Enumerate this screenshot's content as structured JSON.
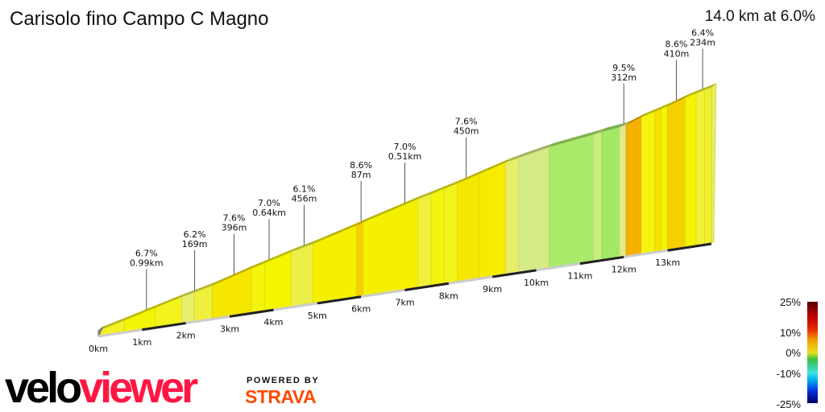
{
  "header": {
    "title": "Carisolo fino Campo C Magno",
    "summary": "14.0 km at 6.0%"
  },
  "chart_data": {
    "type": "area",
    "title": "Carisolo fino Campo C Magno",
    "xlabel": "",
    "ylabel": "",
    "xlim": [
      0,
      14
    ],
    "x_ticks": [
      "0km",
      "1km",
      "2km",
      "3km",
      "4km",
      "5km",
      "6km",
      "7km",
      "8km",
      "9km",
      "10km",
      "11km",
      "12km",
      "13km"
    ],
    "segments": [
      [
        0,
        0.6,
        6.5
      ],
      [
        0,
        0.6,
        6.5
      ],
      [
        0.6,
        1.3,
        6.9
      ],
      [
        1.3,
        1.9,
        6.6
      ],
      [
        1.9,
        2.2,
        5.8
      ],
      [
        1.9,
        2.2,
        5.8
      ],
      [
        2.2,
        2.6,
        6.2
      ],
      [
        2.6,
        3.5,
        7.6
      ],
      [
        3.5,
        3.8,
        6.8
      ],
      [
        3.8,
        4.4,
        7.0
      ],
      [
        4.4,
        4.9,
        6.1
      ],
      [
        4.9,
        5.9,
        7.2
      ],
      [
        5.9,
        6.05,
        8.6
      ],
      [
        6.05,
        7.3,
        7.2
      ],
      [
        7.3,
        7.6,
        6.2
      ],
      [
        7.6,
        7.9,
        6.8
      ],
      [
        7.9,
        8.2,
        6.6
      ],
      [
        8.2,
        8.7,
        7.6
      ],
      [
        8.7,
        9.3,
        7.4
      ],
      [
        9.3,
        9.6,
        5.8
      ],
      [
        9.6,
        10.3,
        5.2
      ],
      [
        10.3,
        11.3,
        3.5
      ],
      [
        11.3,
        11.5,
        4.8
      ],
      [
        11.5,
        11.9,
        2.8
      ],
      [
        11.9,
        12.05,
        5.5
      ],
      [
        12.05,
        12.4,
        9.5
      ],
      [
        12.4,
        12.7,
        6.8
      ],
      [
        12.7,
        12.85,
        7.8
      ],
      [
        12.85,
        13.0,
        6.9
      ],
      [
        13.0,
        13.4,
        8.6
      ],
      [
        13.4,
        13.65,
        6.9
      ],
      [
        13.65,
        13.85,
        6.3
      ],
      [
        13.85,
        14.0,
        6.4
      ]
    ],
    "annotations": [
      {
        "km": 1.1,
        "grade": "6.7%",
        "length": "0.99km"
      },
      {
        "km": 2.2,
        "grade": "6.2%",
        "length": "169m"
      },
      {
        "km": 3.1,
        "grade": "7.6%",
        "length": "396m"
      },
      {
        "km": 3.9,
        "grade": "7.0%",
        "length": "0.64km"
      },
      {
        "km": 4.7,
        "grade": "6.1%",
        "length": "456m"
      },
      {
        "km": 6.0,
        "grade": "8.6%",
        "length": "87m"
      },
      {
        "km": 7.0,
        "grade": "7.0%",
        "length": "0.51km"
      },
      {
        "km": 8.4,
        "grade": "7.6%",
        "length": "450m"
      },
      {
        "km": 12.0,
        "grade": "9.5%",
        "length": "312m"
      },
      {
        "km": 13.2,
        "grade": "8.6%",
        "length": "410m"
      },
      {
        "km": 13.8,
        "grade": "6.4%",
        "length": "234m"
      }
    ],
    "legend": {
      "labels": [
        "25%",
        "10%",
        "0%",
        "-10%",
        "-25%"
      ],
      "placement": "bottom-right"
    }
  },
  "branding": {
    "velo": "velo",
    "viewer": "viewer",
    "powered_by": "POWERED BY",
    "strava": "STRAVA"
  },
  "colors": {
    "velo": "#000000",
    "viewer": "#ff1744",
    "strava": "#fc4c02"
  }
}
